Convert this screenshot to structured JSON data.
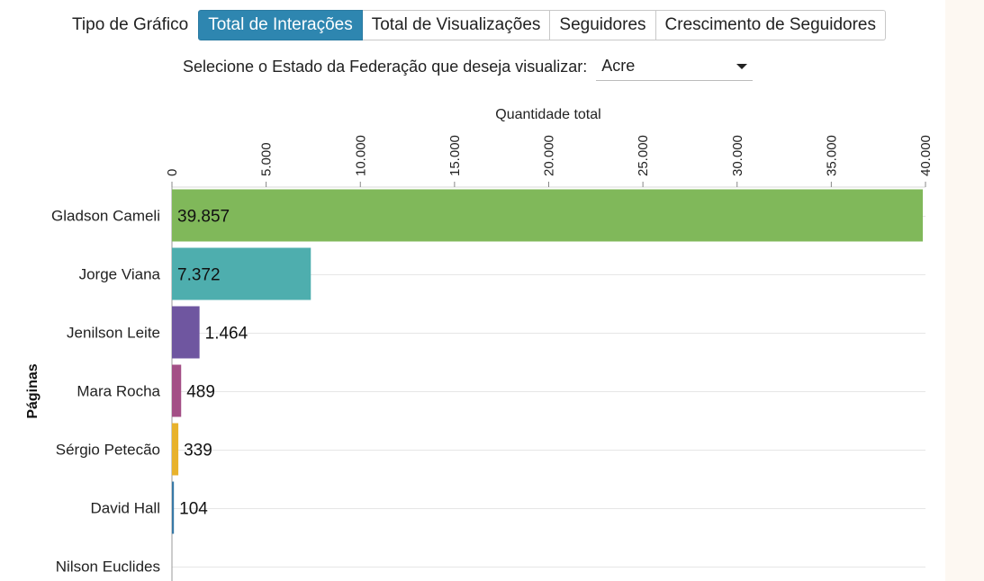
{
  "toolbar": {
    "label": "Tipo de Gráfico",
    "buttons": [
      {
        "label": "Total de Interações",
        "active": true
      },
      {
        "label": "Total de Visualizações",
        "active": false
      },
      {
        "label": "Seguidores",
        "active": false
      },
      {
        "label": "Crescimento de Seguidores",
        "active": false
      }
    ]
  },
  "state_filter": {
    "label": "Selecione o Estado da Federação que deseja visualizar:",
    "selected": "Acre"
  },
  "chart_data": {
    "type": "bar",
    "orientation": "horizontal",
    "xlabel": "Quantidade total",
    "ylabel": "Páginas",
    "xlim": [
      0,
      40000
    ],
    "ticks": [
      0,
      5000,
      10000,
      15000,
      20000,
      25000,
      30000,
      35000,
      40000
    ],
    "tick_labels": [
      "0",
      "5.000",
      "10.000",
      "15.000",
      "20.000",
      "25.000",
      "30.000",
      "35.000",
      "40.000"
    ],
    "categories": [
      "Gladson Cameli",
      "Jorge Viana",
      "Jenilson Leite",
      "Mara Rocha",
      "Sérgio Petecão",
      "David Hall",
      "Nilson Euclides"
    ],
    "values": [
      39857,
      7372,
      1464,
      489,
      339,
      104,
      0
    ],
    "value_labels": [
      "39.857",
      "7.372",
      "1.464",
      "489",
      "339",
      "104",
      ""
    ],
    "colors": [
      "#80b85a",
      "#4eaeae",
      "#6f56a0",
      "#a34f86",
      "#e8b22c",
      "#3879a6",
      "#777777"
    ],
    "grid": true,
    "axis_position": "top"
  }
}
